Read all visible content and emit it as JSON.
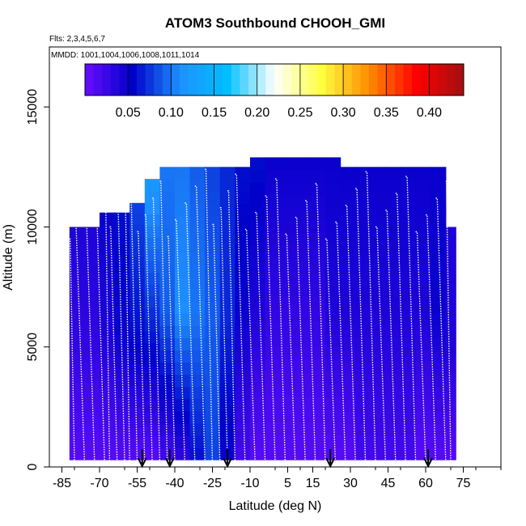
{
  "chart_data": {
    "type": "heatmap",
    "title": "ATOM3 Southbound CHOOH_GMI",
    "flights_note": "Flts: 2,3,4,5,6,7",
    "dates_note": "MMDD: 1001,1004,1006,1008,1011,1014",
    "xlabel": "Latitude (deg N)",
    "ylabel": "Altitude (m)",
    "xlim": [
      -90,
      90
    ],
    "ylim": [
      0,
      17500
    ],
    "x_ticks": [
      -85,
      -70,
      -55,
      -40,
      -25,
      -10,
      5,
      15,
      30,
      45,
      60,
      75
    ],
    "x_tick_labels": [
      "-85",
      "-70",
      "-55",
      "-40",
      "-25",
      "-10",
      "5",
      "15",
      "30",
      "45",
      "60",
      "75"
    ],
    "y_ticks": [
      0,
      5000,
      10000,
      15000
    ],
    "y_tick_labels": [
      "0",
      "5000",
      "10000",
      "15000"
    ],
    "colorbar": {
      "range": [
        0.0,
        0.44
      ],
      "ticks": [
        0.05,
        0.1,
        0.15,
        0.2,
        0.25,
        0.3,
        0.35,
        0.4
      ],
      "tick_labels": [
        "0.05",
        "0.10",
        "0.15",
        "0.20",
        "0.25",
        "0.30",
        "0.35",
        "0.40"
      ],
      "colors": [
        "#6a0dff",
        "#0000c8",
        "#1e90ff",
        "#00bfff",
        "#ffffff",
        "#ffff40",
        "#ff8c00",
        "#ff0000",
        "#a01010"
      ]
    },
    "profile_latitudes": [
      -82,
      -80,
      -76,
      -72,
      -68,
      -66,
      -63,
      -60,
      -58,
      -55,
      -52,
      -49,
      -46,
      -43,
      -40,
      -36,
      -32,
      -28,
      -25,
      -22,
      -19,
      -16,
      -12,
      -8,
      -4,
      0,
      4,
      8,
      12,
      16,
      20,
      24,
      28,
      32,
      36,
      40,
      44,
      48,
      52,
      56,
      60,
      64,
      68,
      70
    ],
    "arrow_latitudes": [
      -53,
      -42,
      -19,
      22,
      61
    ],
    "field": {
      "lat_edges": [
        -82,
        -76,
        -70,
        -64,
        -58,
        -52,
        -46,
        -40,
        -34,
        -28,
        -22,
        -16,
        -10,
        -4,
        2,
        8,
        14,
        20,
        26,
        32,
        38,
        44,
        50,
        56,
        62,
        68,
        72
      ],
      "top_altitudes": [
        10000,
        10000,
        10600,
        10600,
        11000,
        12000,
        12500,
        12500,
        12500,
        12500,
        12500,
        12500,
        12900,
        12900,
        12900,
        12900,
        12900,
        12900,
        12500,
        12500,
        12500,
        12500,
        12500,
        12500,
        12500,
        10000
      ],
      "values_low": [
        0.01,
        0.01,
        0.01,
        0.01,
        0.01,
        0.01,
        0.02,
        0.03,
        0.06,
        0.08,
        0.05,
        0.02,
        0.01,
        0.01,
        0.01,
        0.01,
        0.01,
        0.01,
        0.01,
        0.02,
        0.02,
        0.02,
        0.02,
        0.01,
        0.01,
        0.01
      ],
      "values_mid": [
        0.03,
        0.03,
        0.04,
        0.05,
        0.06,
        0.07,
        0.09,
        0.11,
        0.1,
        0.09,
        0.07,
        0.05,
        0.04,
        0.03,
        0.03,
        0.03,
        0.03,
        0.04,
        0.04,
        0.04,
        0.04,
        0.04,
        0.04,
        0.04,
        0.05,
        0.04
      ],
      "values_high": [
        0.04,
        0.04,
        0.05,
        0.06,
        0.08,
        0.12,
        0.1,
        0.1,
        0.09,
        0.08,
        0.07,
        0.06,
        0.06,
        0.05,
        0.05,
        0.05,
        0.05,
        0.05,
        0.05,
        0.05,
        0.05,
        0.05,
        0.05,
        0.05,
        0.05,
        0.04
      ]
    }
  }
}
